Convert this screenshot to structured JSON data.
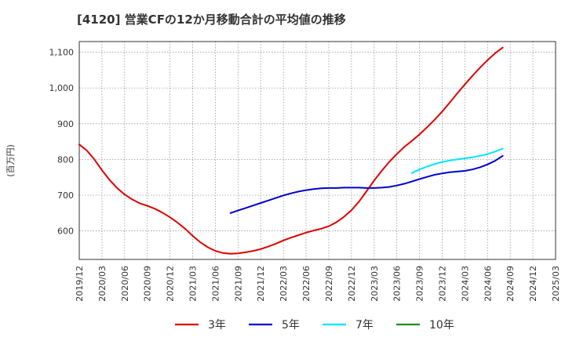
{
  "chart_data": {
    "type": "line",
    "title": "[4120]  営業CFの12か月移動合計の平均値の推移",
    "ylabel": "(百万円)",
    "xlabel": "",
    "ylim": [
      520,
      1130
    ],
    "yticks": [
      600,
      700,
      800,
      900,
      1000,
      1100
    ],
    "ytick_labels": [
      "600",
      "700",
      "800",
      "900",
      "1,000",
      "1,100"
    ],
    "xlim": [
      "2019-12",
      "2025-03"
    ],
    "xticks": [
      "2019/12",
      "2020/03",
      "2020/06",
      "2020/09",
      "2020/12",
      "2021/03",
      "2021/06",
      "2021/09",
      "2021/12",
      "2022/03",
      "2022/06",
      "2022/09",
      "2022/12",
      "2023/03",
      "2023/06",
      "2023/09",
      "2023/12",
      "2024/03",
      "2024/06",
      "2024/09",
      "2024/12",
      "2025/03"
    ],
    "grid": true,
    "legend_position": "bottom",
    "series": [
      {
        "name": "3年",
        "color": "#e00000",
        "points": [
          [
            "2019-12",
            842
          ],
          [
            "2020-01",
            825
          ],
          [
            "2020-02",
            800
          ],
          [
            "2020-03",
            770
          ],
          [
            "2020-04",
            743
          ],
          [
            "2020-05",
            720
          ],
          [
            "2020-06",
            702
          ],
          [
            "2020-07",
            688
          ],
          [
            "2020-08",
            677
          ],
          [
            "2020-09",
            670
          ],
          [
            "2020-10",
            662
          ],
          [
            "2020-11",
            651
          ],
          [
            "2020-12",
            638
          ],
          [
            "2021-01",
            623
          ],
          [
            "2021-02",
            606
          ],
          [
            "2021-03",
            586
          ],
          [
            "2021-04",
            568
          ],
          [
            "2021-05",
            554
          ],
          [
            "2021-06",
            544
          ],
          [
            "2021-07",
            538
          ],
          [
            "2021-08",
            536
          ],
          [
            "2021-09",
            537
          ],
          [
            "2021-10",
            540
          ],
          [
            "2021-11",
            544
          ],
          [
            "2021-12",
            549
          ],
          [
            "2022-01",
            556
          ],
          [
            "2022-02",
            564
          ],
          [
            "2022-03",
            573
          ],
          [
            "2022-04",
            581
          ],
          [
            "2022-05",
            588
          ],
          [
            "2022-06",
            595
          ],
          [
            "2022-07",
            601
          ],
          [
            "2022-08",
            606
          ],
          [
            "2022-09",
            613
          ],
          [
            "2022-10",
            624
          ],
          [
            "2022-11",
            639
          ],
          [
            "2022-12",
            658
          ],
          [
            "2023-01",
            682
          ],
          [
            "2023-02",
            711
          ],
          [
            "2023-03",
            741
          ],
          [
            "2023-04",
            768
          ],
          [
            "2023-05",
            793
          ],
          [
            "2023-06",
            815
          ],
          [
            "2023-07",
            835
          ],
          [
            "2023-08",
            852
          ],
          [
            "2023-09",
            870
          ],
          [
            "2023-10",
            890
          ],
          [
            "2023-11",
            911
          ],
          [
            "2023-12",
            934
          ],
          [
            "2024-01",
            959
          ],
          [
            "2024-02",
            985
          ],
          [
            "2024-03",
            1010
          ],
          [
            "2024-04",
            1034
          ],
          [
            "2024-05",
            1057
          ],
          [
            "2024-06",
            1078
          ],
          [
            "2024-07",
            1097
          ],
          [
            "2024-08",
            1113
          ]
        ]
      },
      {
        "name": "5年",
        "color": "#0000cc",
        "points": [
          [
            "2021-08",
            650
          ],
          [
            "2021-09",
            657
          ],
          [
            "2021-10",
            664
          ],
          [
            "2021-11",
            671
          ],
          [
            "2021-12",
            678
          ],
          [
            "2022-01",
            685
          ],
          [
            "2022-02",
            692
          ],
          [
            "2022-03",
            699
          ],
          [
            "2022-04",
            705
          ],
          [
            "2022-05",
            710
          ],
          [
            "2022-06",
            714
          ],
          [
            "2022-07",
            717
          ],
          [
            "2022-08",
            719
          ],
          [
            "2022-09",
            720
          ],
          [
            "2022-10",
            720
          ],
          [
            "2022-11",
            721
          ],
          [
            "2022-12",
            721
          ],
          [
            "2023-01",
            721
          ],
          [
            "2023-02",
            720
          ],
          [
            "2023-03",
            720
          ],
          [
            "2023-04",
            721
          ],
          [
            "2023-05",
            723
          ],
          [
            "2023-06",
            727
          ],
          [
            "2023-07",
            732
          ],
          [
            "2023-08",
            738
          ],
          [
            "2023-09",
            745
          ],
          [
            "2023-10",
            751
          ],
          [
            "2023-11",
            757
          ],
          [
            "2023-12",
            761
          ],
          [
            "2024-01",
            764
          ],
          [
            "2024-02",
            766
          ],
          [
            "2024-03",
            768
          ],
          [
            "2024-04",
            772
          ],
          [
            "2024-05",
            778
          ],
          [
            "2024-06",
            786
          ],
          [
            "2024-07",
            796
          ],
          [
            "2024-08",
            810
          ]
        ]
      },
      {
        "name": "7年",
        "color": "#00e5ff",
        "points": [
          [
            "2023-08",
            762
          ],
          [
            "2023-09",
            772
          ],
          [
            "2023-10",
            780
          ],
          [
            "2023-11",
            787
          ],
          [
            "2023-12",
            793
          ],
          [
            "2024-01",
            797
          ],
          [
            "2024-02",
            800
          ],
          [
            "2024-03",
            803
          ],
          [
            "2024-04",
            806
          ],
          [
            "2024-05",
            810
          ],
          [
            "2024-06",
            815
          ],
          [
            "2024-07",
            822
          ],
          [
            "2024-08",
            830
          ]
        ]
      },
      {
        "name": "10年",
        "color": "#228b22",
        "points": []
      }
    ]
  }
}
